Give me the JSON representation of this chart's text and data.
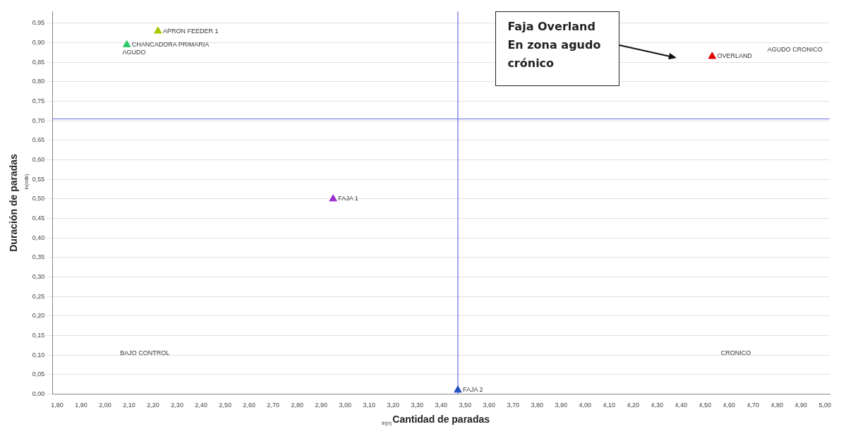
{
  "chart_data": {
    "type": "scatter",
    "xlabel": "Cantidad de paradas",
    "ylabel": "Duración de paradas",
    "xlim": [
      1.78,
      5.02
    ],
    "ylim": [
      0,
      0.98
    ],
    "xticks": [
      {
        "value": 1.8,
        "label": "1,80"
      },
      {
        "value": 1.9,
        "label": "1,90"
      },
      {
        "value": 2.0,
        "label": "2,00"
      },
      {
        "value": 2.1,
        "label": "2,10"
      },
      {
        "value": 2.2,
        "label": "2,20"
      },
      {
        "value": 2.3,
        "label": "2,30"
      },
      {
        "value": 2.4,
        "label": "2,40"
      },
      {
        "value": 2.5,
        "label": "2,50"
      },
      {
        "value": 2.6,
        "label": "2,60"
      },
      {
        "value": 2.7,
        "label": "2,70"
      },
      {
        "value": 2.8,
        "label": "2,80"
      },
      {
        "value": 2.9,
        "label": "2,90"
      },
      {
        "value": 3.0,
        "label": "3,00"
      },
      {
        "value": 3.1,
        "label": "3,10"
      },
      {
        "value": 3.2,
        "label": "3,20"
      },
      {
        "value": 3.3,
        "label": "3,30"
      },
      {
        "value": 3.4,
        "label": "3,40"
      },
      {
        "value": 3.5,
        "label": "3,50"
      },
      {
        "value": 3.6,
        "label": "3,60"
      },
      {
        "value": 3.7,
        "label": "3,70"
      },
      {
        "value": 3.8,
        "label": "3,80"
      },
      {
        "value": 3.9,
        "label": "3,90"
      },
      {
        "value": 4.0,
        "label": "4,00"
      },
      {
        "value": 4.1,
        "label": "4,10"
      },
      {
        "value": 4.2,
        "label": "4,20"
      },
      {
        "value": 4.3,
        "label": "4,30"
      },
      {
        "value": 4.4,
        "label": "4,40"
      },
      {
        "value": 4.5,
        "label": "4,50"
      },
      {
        "value": 4.6,
        "label": "4,60"
      },
      {
        "value": 4.7,
        "label": "4,70"
      },
      {
        "value": 4.8,
        "label": "4,80"
      },
      {
        "value": 4.9,
        "label": "4,90"
      },
      {
        "value": 5.0,
        "label": "5,00"
      }
    ],
    "yticks": [
      {
        "value": 0,
        "label": "0,00"
      },
      {
        "value": 0.05,
        "label": "0,05"
      },
      {
        "value": 0.1,
        "label": "0,10"
      },
      {
        "value": 0.15,
        "label": "0,15"
      },
      {
        "value": 0.2,
        "label": "0,20"
      },
      {
        "value": 0.25,
        "label": "0,25"
      },
      {
        "value": 0.3,
        "label": "0,30"
      },
      {
        "value": 0.35,
        "label": "0,35"
      },
      {
        "value": 0.4,
        "label": "0,40"
      },
      {
        "value": 0.45,
        "label": "0,45"
      },
      {
        "value": 0.5,
        "label": "0,50"
      },
      {
        "value": 0.55,
        "label": "0,55"
      },
      {
        "value": 0.6,
        "label": "0,60"
      },
      {
        "value": 0.65,
        "label": "0,65"
      },
      {
        "value": 0.7,
        "label": "0,70"
      },
      {
        "value": 0.75,
        "label": "0,75"
      },
      {
        "value": 0.8,
        "label": "0,80"
      },
      {
        "value": 0.85,
        "label": "0,85"
      },
      {
        "value": 0.9,
        "label": "0,90"
      },
      {
        "value": 0.95,
        "label": "0,95"
      }
    ],
    "grid": "y",
    "marker": "triangle",
    "legend": false,
    "series": [
      {
        "name": "APRON FEEDER 1",
        "color": "#a8c800",
        "x": [
          2.22
        ],
        "values": [
          0.93
        ]
      },
      {
        "name": "CHANCADORA PRIMARIA",
        "color": "#2ec86a",
        "x": [
          2.09
        ],
        "values": [
          0.895
        ]
      },
      {
        "name": "FAJA 1",
        "color": "#9b30d0",
        "x": [
          2.95
        ],
        "values": [
          0.5
        ]
      },
      {
        "name": "FAJA 2",
        "color": "#2050c0",
        "x": [
          3.47
        ],
        "values": [
          0.01
        ]
      },
      {
        "name": "OVERLAND",
        "color": "#e00000",
        "x": [
          4.53
        ],
        "values": [
          0.865
        ]
      }
    ],
    "ref_lines": [
      {
        "axis": "x",
        "value": 3.47,
        "color": "#6a6ae8"
      },
      {
        "axis": "y",
        "value": 0.705,
        "color": "#6a6ae8"
      }
    ],
    "annotations": [
      "ln(n)",
      "ln(mttr)",
      "AGUDO",
      "AGUDO CRONICO",
      "BAJO CONTROL",
      "CRONICO",
      "Faja Overland En zona agudo crónico"
    ]
  }
}
